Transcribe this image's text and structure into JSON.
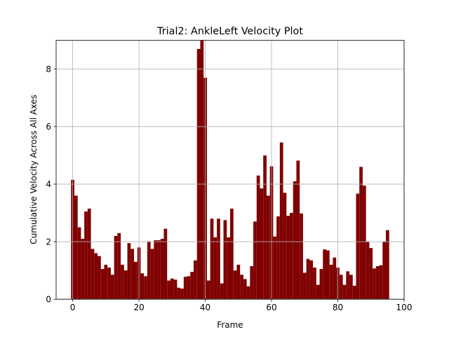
{
  "chart_data": {
    "type": "bar",
    "title": "Trial2: AnkleLeft Velocity Plot",
    "xlabel": "Frame",
    "ylabel": "Cumulative Velocity Across All Axes",
    "xlim": [
      -5,
      100
    ],
    "ylim": [
      0,
      9.0
    ],
    "xticks": [
      0,
      20,
      40,
      60,
      80,
      100
    ],
    "yticks": [
      0,
      2,
      4,
      6,
      8
    ],
    "grid": true,
    "bar_color": "#800000",
    "x": [
      0,
      1,
      2,
      3,
      4,
      5,
      6,
      7,
      8,
      9,
      10,
      11,
      12,
      13,
      14,
      15,
      16,
      17,
      18,
      19,
      20,
      21,
      22,
      23,
      24,
      25,
      26,
      27,
      28,
      29,
      30,
      31,
      32,
      33,
      34,
      35,
      36,
      37,
      38,
      39,
      40,
      41,
      42,
      43,
      44,
      45,
      46,
      47,
      48,
      49,
      50,
      51,
      52,
      53,
      54,
      55,
      56,
      57,
      58,
      59,
      60,
      61,
      62,
      63,
      64,
      65,
      66,
      67,
      68,
      69,
      70,
      71,
      72,
      73,
      74,
      75,
      76,
      77,
      78,
      79,
      80,
      81,
      82,
      83,
      84,
      85,
      86,
      87,
      88,
      89,
      90,
      91,
      92,
      93,
      94,
      95
    ],
    "values": [
      4.15,
      3.6,
      2.5,
      2.1,
      3.05,
      3.15,
      1.75,
      1.6,
      1.5,
      1.05,
      1.2,
      1.1,
      0.85,
      2.2,
      2.3,
      1.2,
      1.0,
      1.95,
      1.75,
      1.3,
      1.8,
      0.9,
      0.8,
      2.0,
      1.75,
      2.05,
      2.05,
      2.1,
      2.45,
      0.65,
      0.72,
      0.68,
      0.4,
      0.37,
      0.78,
      0.8,
      0.95,
      1.35,
      8.7,
      9.0,
      7.7,
      0.65,
      2.8,
      2.15,
      2.8,
      0.55,
      2.75,
      2.15,
      3.15,
      1.0,
      1.2,
      0.85,
      0.7,
      0.45,
      1.15,
      2.7,
      4.3,
      3.85,
      5.0,
      3.6,
      4.62,
      2.18,
      2.88,
      5.45,
      3.7,
      2.9,
      3.0,
      4.1,
      4.82,
      2.98,
      0.92,
      1.4,
      1.35,
      1.1,
      0.5,
      1.05,
      1.73,
      1.7,
      1.2,
      1.45,
      1.1,
      0.85,
      0.5,
      0.97,
      0.85,
      0.47,
      3.67,
      4.6,
      3.95,
      2.0,
      1.78,
      1.07,
      1.15,
      1.18,
      2.0,
      2.4
    ]
  }
}
